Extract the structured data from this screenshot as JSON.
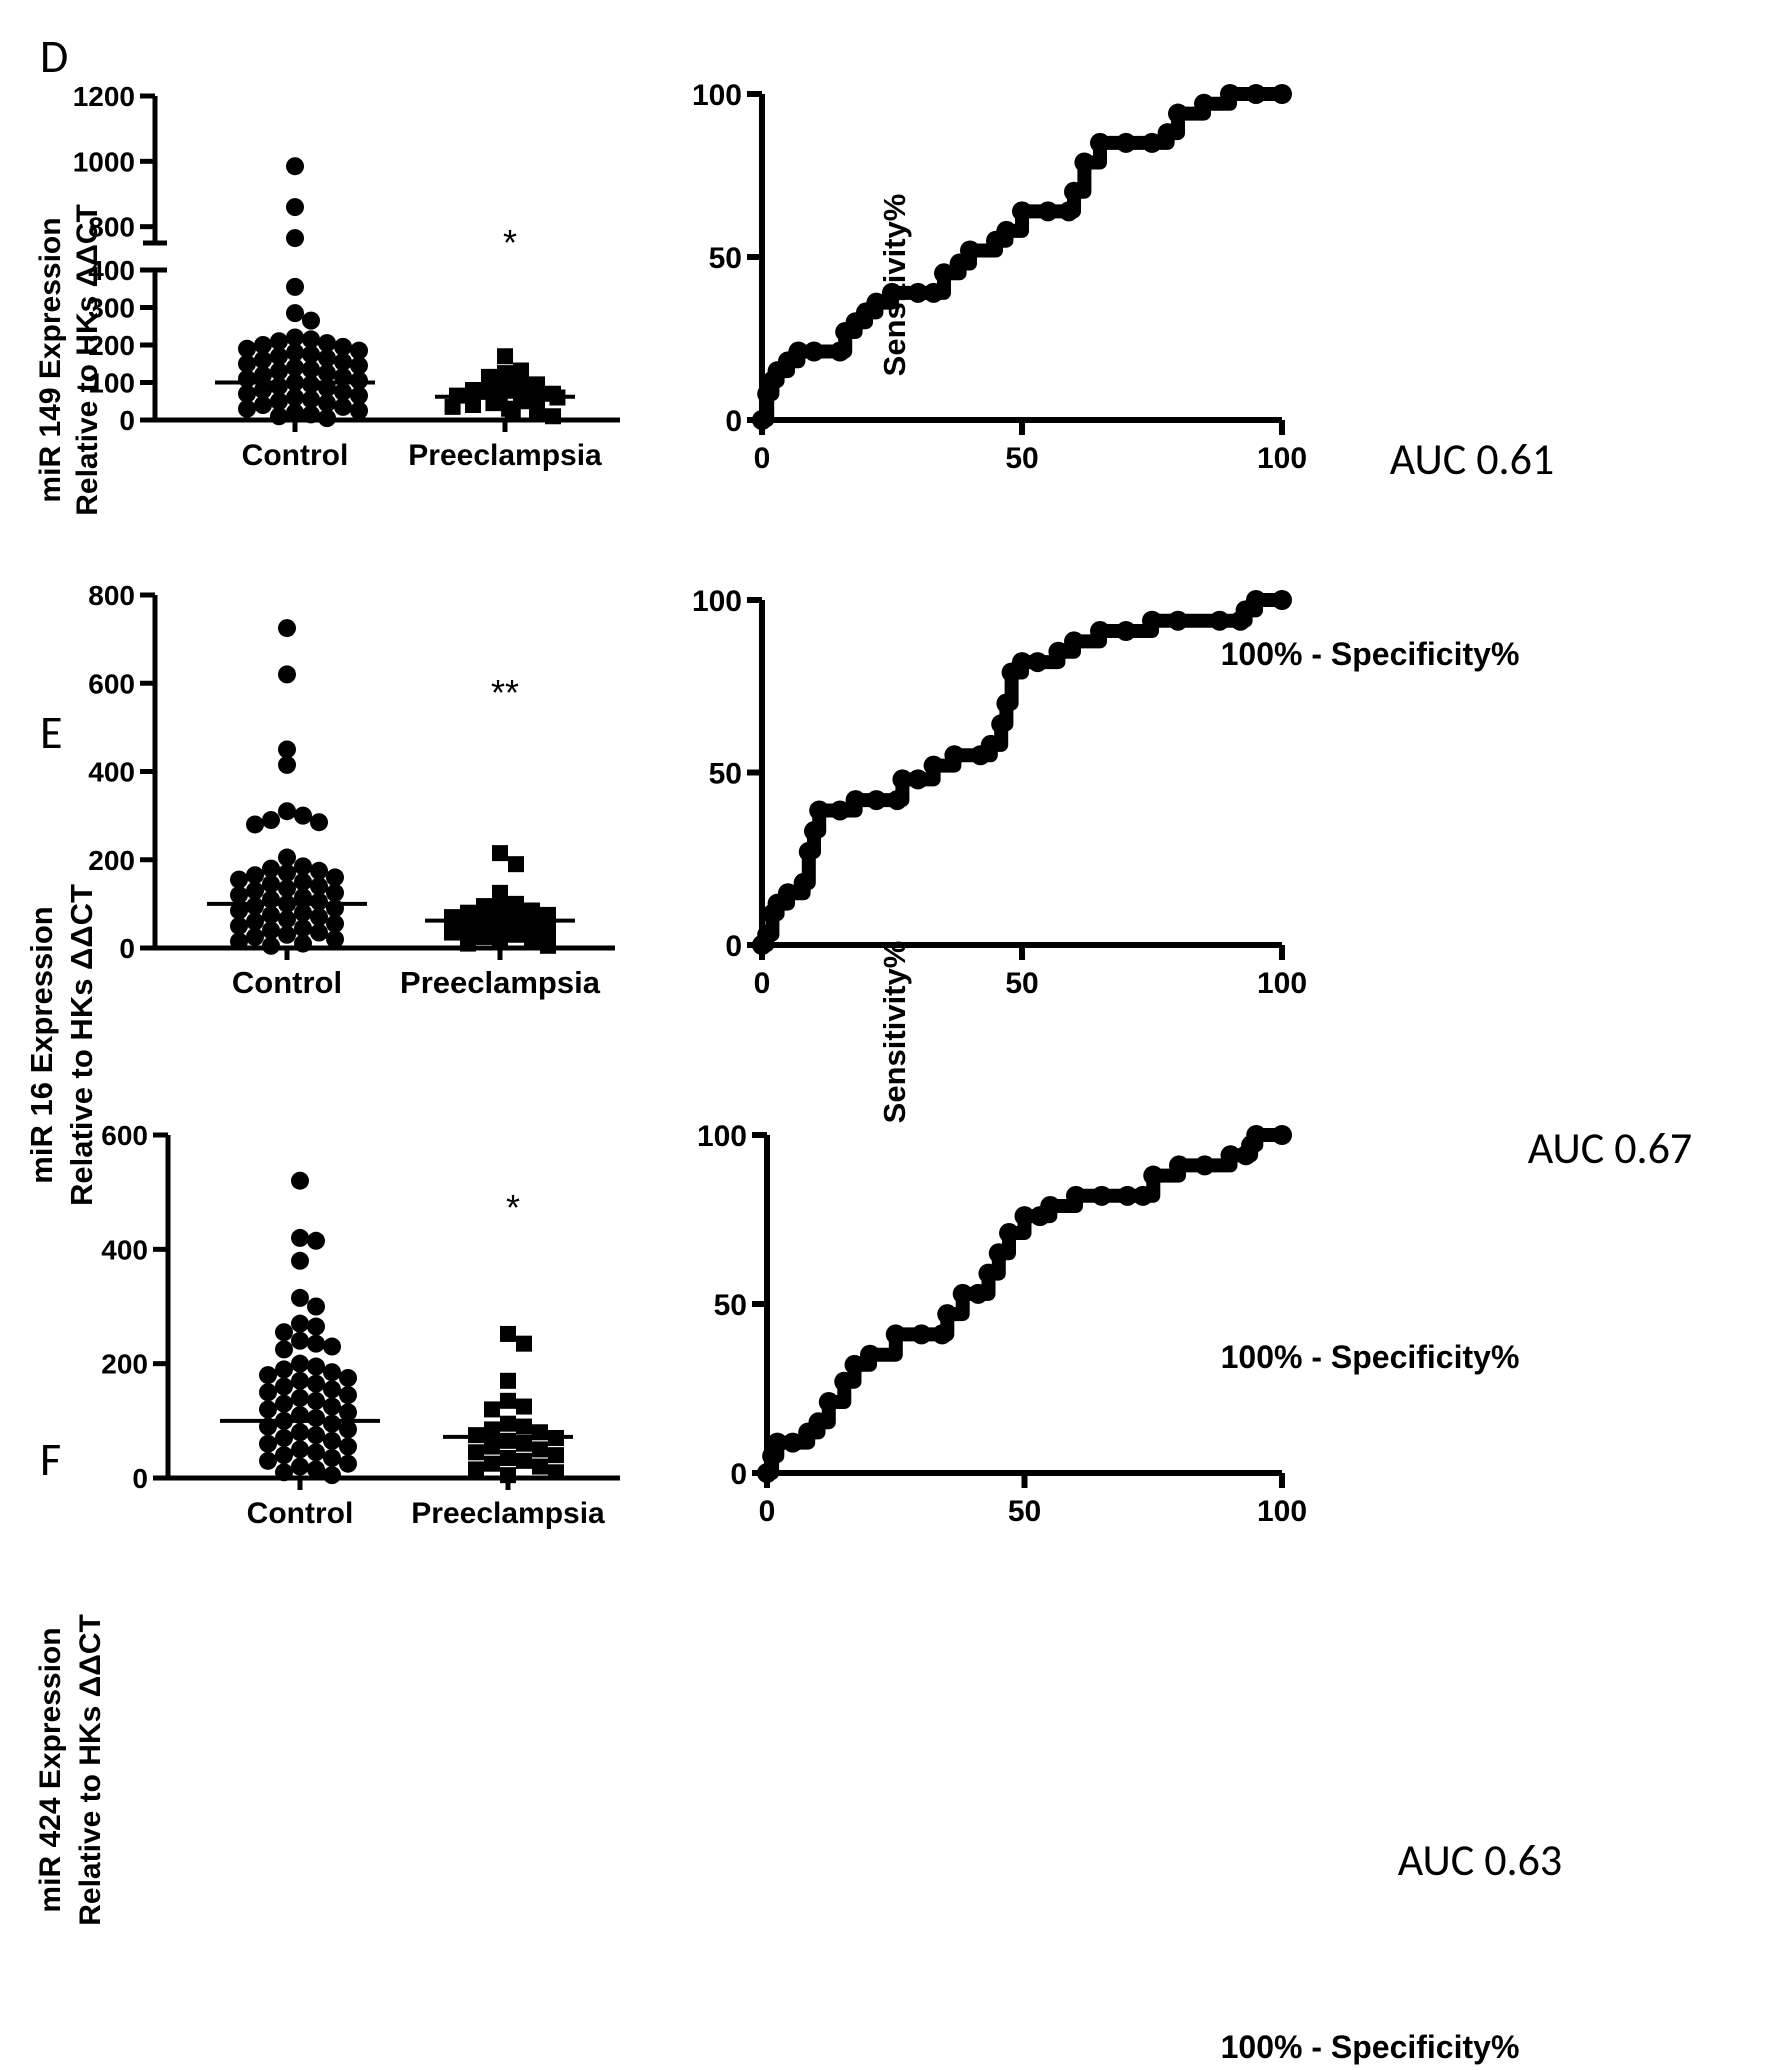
{
  "chart_data": [
    {
      "id": "D-scatter",
      "panel_label": "D",
      "type": "scatter",
      "title": "",
      "ylabel_line1": "miR 149 Expression",
      "ylabel_line2": "Relative to HKs ΔΔCT",
      "categories": [
        "Control",
        "Preeclampsia"
      ],
      "yticks_lower": [
        "0",
        "100",
        "200",
        "300",
        "400"
      ],
      "yticks_upper": [
        "800",
        "1000",
        "1200"
      ],
      "ylim_lower": [
        0,
        400
      ],
      "ylim_upper": [
        750,
        1200
      ],
      "significance": "*",
      "series": [
        {
          "name": "Control",
          "marker": "circle",
          "mean": 100,
          "values": [
            985,
            860,
            765,
            355,
            285,
            265,
            220,
            215,
            210,
            205,
            200,
            195,
            190,
            185,
            180,
            175,
            170,
            165,
            160,
            155,
            150,
            145,
            140,
            135,
            130,
            125,
            120,
            115,
            110,
            105,
            100,
            95,
            90,
            85,
            80,
            75,
            70,
            65,
            60,
            55,
            50,
            45,
            40,
            35,
            30,
            25,
            20,
            15,
            10,
            5
          ]
        },
        {
          "name": "Preeclampsia",
          "marker": "square",
          "mean": 62,
          "values": [
            170,
            132,
            125,
            115,
            95,
            90,
            85,
            80,
            75,
            70,
            65,
            60,
            58,
            55,
            50,
            45,
            40,
            35,
            30,
            22,
            15,
            10
          ]
        }
      ]
    },
    {
      "id": "D-roc",
      "type": "line",
      "title": "",
      "xlabel": "100% - Specificity%",
      "ylabel": "Sensitivity%",
      "xticks": [
        "0",
        "50",
        "100"
      ],
      "yticks": [
        "0",
        "50",
        "100"
      ],
      "xlim": [
        0,
        100
      ],
      "ylim": [
        0,
        100
      ],
      "annotation": "AUC 0.61",
      "series": [
        {
          "name": "ROC",
          "x": [
            0,
            1,
            2,
            3,
            5,
            7,
            10,
            15,
            16,
            18,
            20,
            22,
            25,
            30,
            33,
            35,
            38,
            40,
            45,
            47,
            50,
            55,
            59,
            60,
            62,
            65,
            70,
            75,
            78,
            80,
            85,
            90,
            95,
            100
          ],
          "y": [
            0,
            8,
            12,
            15,
            18,
            21,
            21,
            21,
            27,
            30,
            33,
            36,
            39,
            39,
            39,
            45,
            48,
            52,
            55,
            58,
            64,
            64,
            64,
            70,
            79,
            85,
            85,
            85,
            88,
            94,
            97,
            100,
            100,
            100
          ]
        }
      ]
    },
    {
      "id": "E-scatter",
      "panel_label": "E",
      "type": "scatter",
      "title": "",
      "ylabel_line1": "miR 16 Expression",
      "ylabel_line2": "Relative to HKs ΔΔCT",
      "categories": [
        "Control",
        "Preeclampsia"
      ],
      "yticks": [
        "0",
        "200",
        "400",
        "600",
        "800"
      ],
      "ylim": [
        0,
        800
      ],
      "significance": "**",
      "series": [
        {
          "name": "Control",
          "marker": "circle",
          "mean": 100,
          "values": [
            725,
            620,
            450,
            415,
            310,
            300,
            290,
            285,
            280,
            205,
            185,
            180,
            175,
            170,
            165,
            160,
            155,
            150,
            145,
            140,
            135,
            130,
            125,
            120,
            115,
            110,
            105,
            100,
            95,
            90,
            85,
            80,
            75,
            70,
            65,
            60,
            55,
            50,
            45,
            40,
            35,
            30,
            25,
            20,
            15,
            10,
            5
          ]
        },
        {
          "name": "Preeclampsia",
          "marker": "square",
          "mean": 62,
          "values": [
            215,
            190,
            125,
            100,
            95,
            90,
            85,
            80,
            75,
            70,
            65,
            60,
            55,
            50,
            45,
            40,
            35,
            30,
            25,
            20,
            15,
            10,
            5
          ]
        }
      ]
    },
    {
      "id": "E-roc",
      "type": "line",
      "title": "",
      "xlabel": "100% - Specificity%",
      "ylabel": "Sensitivity%",
      "xticks": [
        "0",
        "50",
        "100"
      ],
      "yticks": [
        "0",
        "50",
        "100"
      ],
      "xlim": [
        0,
        100
      ],
      "ylim": [
        0,
        100
      ],
      "annotation": "AUC 0.67",
      "series": [
        {
          "name": "ROC",
          "x": [
            0,
            1,
            2,
            3,
            5,
            8,
            9,
            10,
            11,
            15,
            18,
            22,
            26,
            27,
            30,
            33,
            37,
            42,
            44,
            46,
            47,
            48,
            50,
            53,
            57,
            60,
            65,
            70,
            75,
            80,
            88,
            92,
            93,
            95,
            100
          ],
          "y": [
            0,
            3,
            9,
            12,
            15,
            18,
            27,
            33,
            39,
            39,
            42,
            42,
            42,
            48,
            48,
            52,
            55,
            55,
            58,
            64,
            70,
            79,
            82,
            82,
            85,
            88,
            91,
            91,
            94,
            94,
            94,
            94,
            97,
            100,
            100
          ]
        }
      ]
    },
    {
      "id": "F-scatter",
      "panel_label": "F",
      "type": "scatter",
      "title": "",
      "ylabel_line1": "miR 424 Expression",
      "ylabel_line2": "Relative to HKs ΔΔCT",
      "categories": [
        "Control",
        "Preeclampsia"
      ],
      "yticks": [
        "0",
        "200",
        "400",
        "600"
      ],
      "ylim": [
        0,
        600
      ],
      "significance": "*",
      "series": [
        {
          "name": "Control",
          "marker": "circle",
          "mean": 100,
          "values": [
            520,
            420,
            415,
            380,
            315,
            300,
            270,
            265,
            255,
            240,
            235,
            230,
            225,
            200,
            195,
            190,
            185,
            180,
            175,
            170,
            165,
            160,
            155,
            150,
            145,
            140,
            135,
            130,
            125,
            120,
            115,
            110,
            105,
            100,
            95,
            90,
            85,
            80,
            75,
            70,
            65,
            60,
            55,
            50,
            45,
            40,
            35,
            30,
            25,
            20,
            15,
            10,
            5
          ]
        },
        {
          "name": "Preeclampsia",
          "marker": "square",
          "mean": 72,
          "values": [
            252,
            235,
            170,
            135,
            125,
            120,
            95,
            90,
            85,
            80,
            75,
            70,
            65,
            60,
            55,
            50,
            45,
            40,
            35,
            30,
            25,
            20,
            15,
            10,
            5
          ]
        }
      ]
    },
    {
      "id": "F-roc",
      "type": "line",
      "title": "",
      "xlabel": "100% - Specificity%",
      "ylabel": "",
      "xticks": [
        "0",
        "50",
        "100"
      ],
      "yticks": [
        "0",
        "50",
        "100"
      ],
      "xlim": [
        0,
        100
      ],
      "ylim": [
        0,
        100
      ],
      "annotation": "AUC 0.63",
      "series": [
        {
          "name": "ROC",
          "x": [
            0,
            1,
            2,
            5,
            8,
            10,
            12,
            15,
            17,
            20,
            25,
            30,
            34,
            35,
            38,
            41,
            43,
            45,
            47,
            50,
            53,
            55,
            60,
            65,
            70,
            73,
            75,
            80,
            85,
            90,
            93,
            94,
            95,
            100
          ],
          "y": [
            0,
            5,
            9,
            9,
            12,
            15,
            21,
            27,
            32,
            35,
            41,
            41,
            41,
            47,
            53,
            53,
            59,
            65,
            71,
            76,
            76,
            79,
            82,
            82,
            82,
            82,
            88,
            91,
            91,
            94,
            94,
            97,
            100,
            100
          ]
        }
      ]
    }
  ]
}
